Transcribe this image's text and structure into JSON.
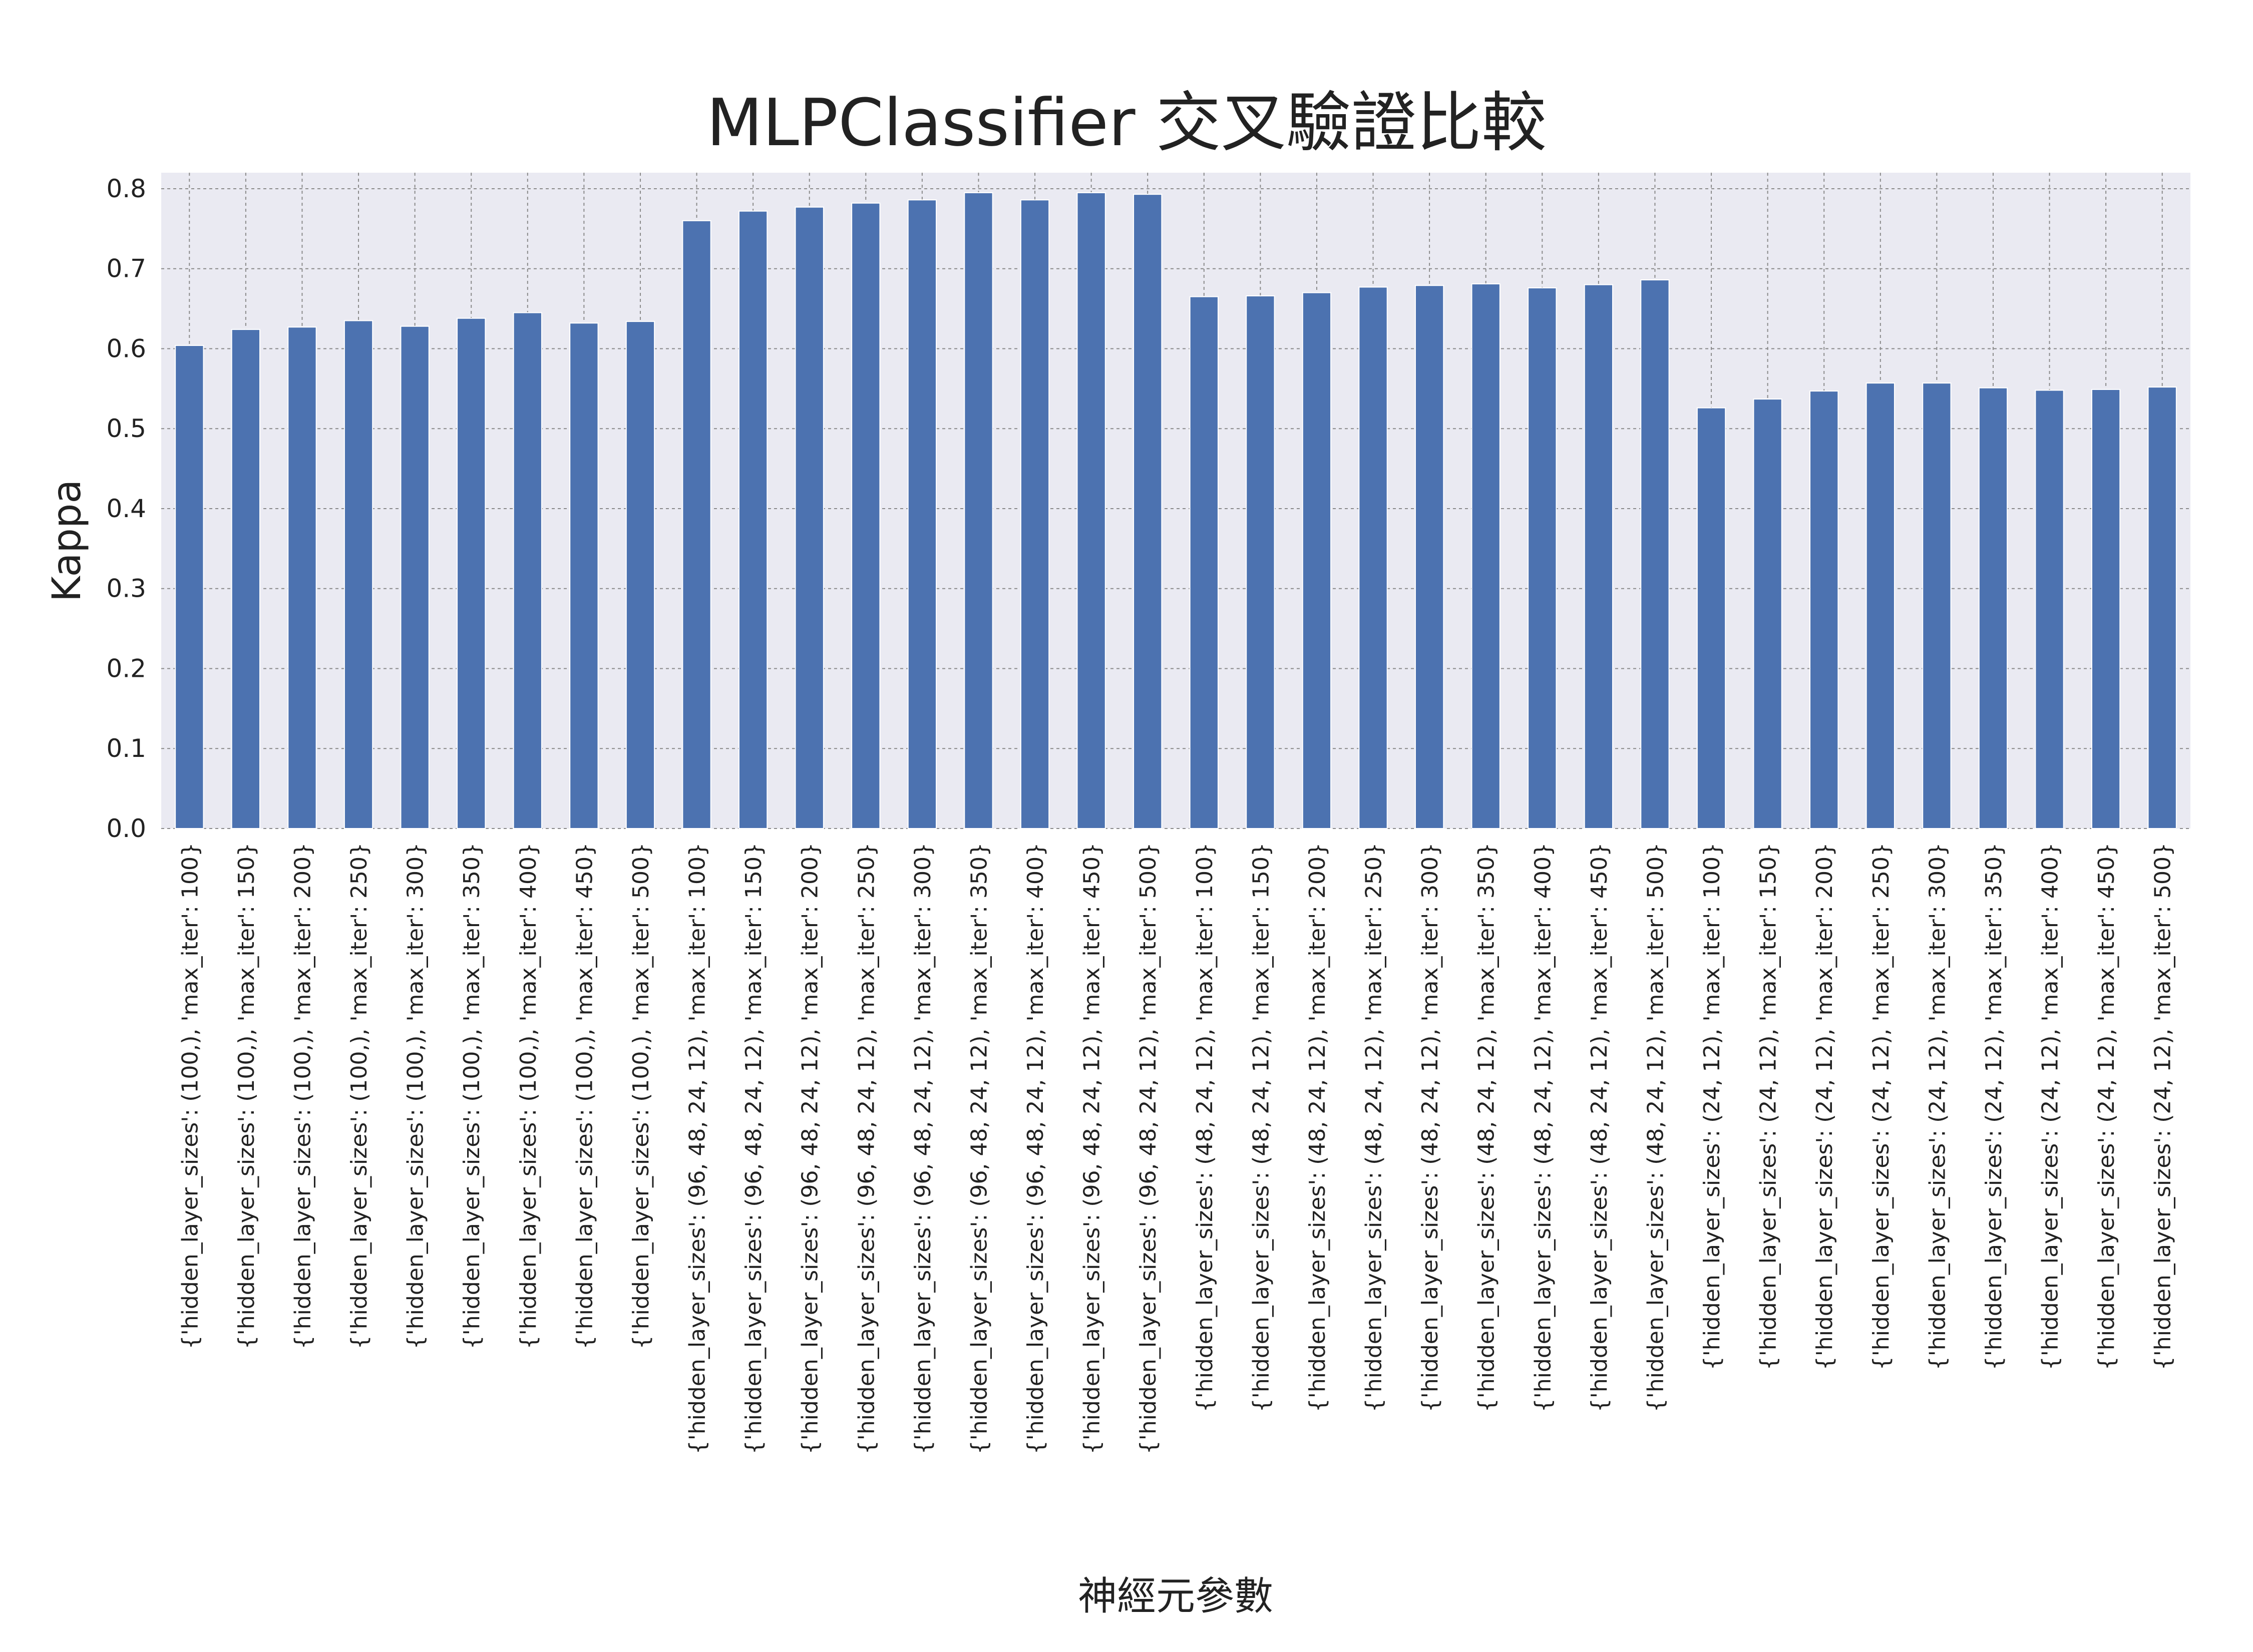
{
  "chart_data": {
    "type": "bar",
    "title": "MLPClassifier 交叉驗證比較",
    "xlabel": "神經元參數",
    "ylabel": "Kappa",
    "ylim": [
      0,
      0.82
    ],
    "yticks": [
      "0.0",
      "0.1",
      "0.2",
      "0.3",
      "0.4",
      "0.5",
      "0.6",
      "0.7",
      "0.8"
    ],
    "grid": true,
    "legend": "none",
    "bar_color": "#4c72b0",
    "plot_background": "#eaeaf2",
    "categories": [
      "{'hidden_layer_sizes': (100,), 'max_iter': 100}",
      "{'hidden_layer_sizes': (100,), 'max_iter': 150}",
      "{'hidden_layer_sizes': (100,), 'max_iter': 200}",
      "{'hidden_layer_sizes': (100,), 'max_iter': 250}",
      "{'hidden_layer_sizes': (100,), 'max_iter': 300}",
      "{'hidden_layer_sizes': (100,), 'max_iter': 350}",
      "{'hidden_layer_sizes': (100,), 'max_iter': 400}",
      "{'hidden_layer_sizes': (100,), 'max_iter': 450}",
      "{'hidden_layer_sizes': (100,), 'max_iter': 500}",
      "{'hidden_layer_sizes': (96, 48, 24, 12), 'max_iter': 100}",
      "{'hidden_layer_sizes': (96, 48, 24, 12), 'max_iter': 150}",
      "{'hidden_layer_sizes': (96, 48, 24, 12), 'max_iter': 200}",
      "{'hidden_layer_sizes': (96, 48, 24, 12), 'max_iter': 250}",
      "{'hidden_layer_sizes': (96, 48, 24, 12), 'max_iter': 300}",
      "{'hidden_layer_sizes': (96, 48, 24, 12), 'max_iter': 350}",
      "{'hidden_layer_sizes': (96, 48, 24, 12), 'max_iter': 400}",
      "{'hidden_layer_sizes': (96, 48, 24, 12), 'max_iter': 450}",
      "{'hidden_layer_sizes': (96, 48, 24, 12), 'max_iter': 500}",
      "{'hidden_layer_sizes': (48, 24, 12), 'max_iter': 100}",
      "{'hidden_layer_sizes': (48, 24, 12), 'max_iter': 150}",
      "{'hidden_layer_sizes': (48, 24, 12), 'max_iter': 200}",
      "{'hidden_layer_sizes': (48, 24, 12), 'max_iter': 250}",
      "{'hidden_layer_sizes': (48, 24, 12), 'max_iter': 300}",
      "{'hidden_layer_sizes': (48, 24, 12), 'max_iter': 350}",
      "{'hidden_layer_sizes': (48, 24, 12), 'max_iter': 400}",
      "{'hidden_layer_sizes': (48, 24, 12), 'max_iter': 450}",
      "{'hidden_layer_sizes': (48, 24, 12), 'max_iter': 500}",
      "{'hidden_layer_sizes': (24, 12), 'max_iter': 100}",
      "{'hidden_layer_sizes': (24, 12), 'max_iter': 150}",
      "{'hidden_layer_sizes': (24, 12), 'max_iter': 200}",
      "{'hidden_layer_sizes': (24, 12), 'max_iter': 250}",
      "{'hidden_layer_sizes': (24, 12), 'max_iter': 300}",
      "{'hidden_layer_sizes': (24, 12), 'max_iter': 350}",
      "{'hidden_layer_sizes': (24, 12), 'max_iter': 400}",
      "{'hidden_layer_sizes': (24, 12), 'max_iter': 450}",
      "{'hidden_layer_sizes': (24, 12), 'max_iter': 500}"
    ],
    "values": [
      0.604,
      0.624,
      0.627,
      0.635,
      0.628,
      0.638,
      0.645,
      0.632,
      0.634,
      0.76,
      0.772,
      0.777,
      0.782,
      0.786,
      0.795,
      0.786,
      0.795,
      0.793,
      0.665,
      0.666,
      0.67,
      0.677,
      0.679,
      0.681,
      0.676,
      0.68,
      0.686,
      0.526,
      0.537,
      0.547,
      0.557,
      0.557,
      0.551,
      0.548,
      0.549,
      0.552
    ]
  }
}
